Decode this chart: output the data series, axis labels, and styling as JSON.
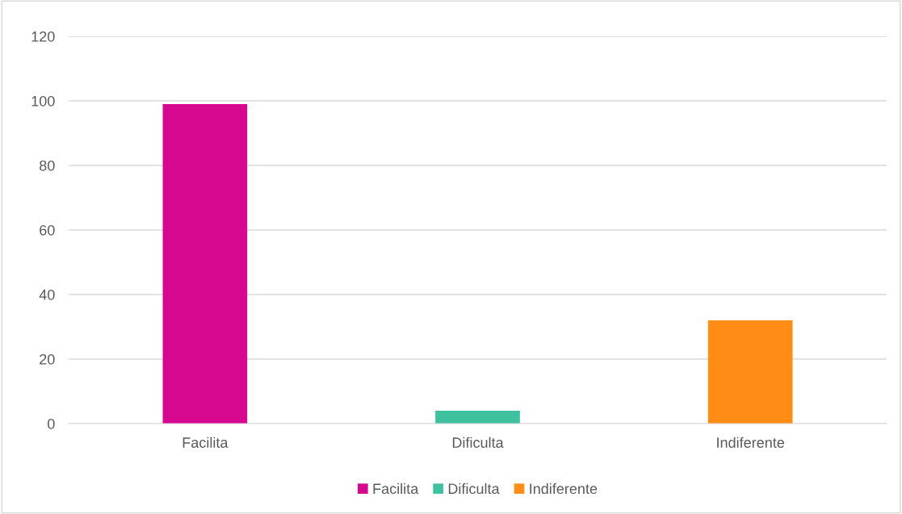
{
  "chart_data": {
    "type": "bar",
    "categories": [
      "Facilita",
      "Dificulta",
      "Indiferente"
    ],
    "series": [
      {
        "name": "Facilita",
        "color": "#d6088f",
        "values": [
          99,
          null,
          null
        ]
      },
      {
        "name": "Dificulta",
        "color": "#3fc1a0",
        "values": [
          null,
          4,
          null
        ]
      },
      {
        "name": "Indiferente",
        "color": "#ff8c14",
        "values": [
          null,
          null,
          32
        ]
      }
    ],
    "ylim": [
      0,
      120
    ],
    "yticks": [
      0,
      20,
      40,
      60,
      80,
      100,
      120
    ],
    "grid": "y",
    "legend": "bottom"
  }
}
